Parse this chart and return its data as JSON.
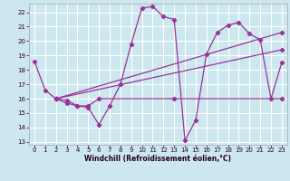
{
  "xlabel": "Windchill (Refroidissement éolien,°C)",
  "bg_color": "#cce8ee",
  "grid_color": "#ffffff",
  "line_color": "#993399",
  "xlim": [
    -0.5,
    23.5
  ],
  "ylim": [
    12.8,
    22.6
  ],
  "yticks": [
    13,
    14,
    15,
    16,
    17,
    18,
    19,
    20,
    21,
    22
  ],
  "xticks": [
    0,
    1,
    2,
    3,
    4,
    5,
    6,
    7,
    8,
    9,
    10,
    11,
    12,
    13,
    14,
    15,
    16,
    17,
    18,
    19,
    20,
    21,
    22,
    23
  ],
  "series1_x": [
    0,
    1,
    2,
    3,
    4,
    5,
    6,
    7,
    8,
    9,
    10,
    11,
    12,
    13,
    14,
    15,
    16,
    17,
    18,
    19,
    20,
    21,
    22,
    23
  ],
  "series1_y": [
    18.6,
    16.6,
    16.0,
    15.7,
    15.5,
    15.4,
    14.2,
    15.5,
    17.0,
    19.8,
    22.3,
    22.4,
    21.7,
    21.5,
    13.1,
    14.5,
    19.1,
    20.6,
    21.1,
    21.3,
    20.5,
    20.1,
    16.0,
    18.5
  ],
  "series2_x": [
    2,
    3,
    4,
    5,
    6,
    13,
    23
  ],
  "series2_y": [
    16.0,
    15.9,
    15.5,
    15.5,
    16.0,
    16.0,
    16.0
  ],
  "series3_x": [
    2,
    23
  ],
  "series3_y": [
    16.0,
    19.4
  ],
  "series4_x": [
    2,
    23
  ],
  "series4_y": [
    16.0,
    20.6
  ]
}
